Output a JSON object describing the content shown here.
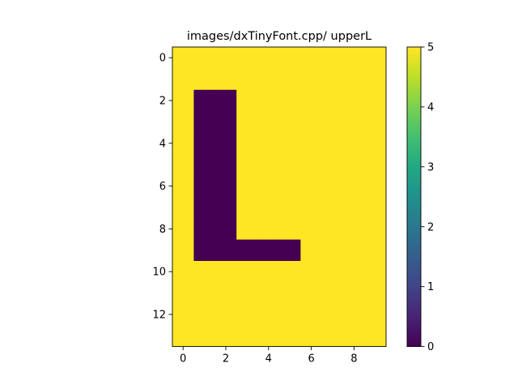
{
  "chart_data": {
    "type": "heatmap",
    "title": "images/dxTinyFont.cpp/ upperL",
    "xlabel": "",
    "ylabel": "",
    "x_ticks": [
      "0",
      "2",
      "4",
      "6",
      "8"
    ],
    "y_ticks": [
      "0",
      "2",
      "4",
      "6",
      "8",
      "10",
      "12"
    ],
    "xlim": [
      -0.5,
      9.5
    ],
    "ylim": [
      13.5,
      -0.5
    ],
    "colormap": "viridis",
    "color_range": [
      0,
      5
    ],
    "colorbar_ticks": [
      "0",
      "1",
      "2",
      "3",
      "4",
      "5"
    ],
    "grid": false,
    "rows": 14,
    "cols": 10,
    "values": [
      [
        5,
        5,
        5,
        5,
        5,
        5,
        5,
        5,
        5,
        5
      ],
      [
        5,
        5,
        5,
        5,
        5,
        5,
        5,
        5,
        5,
        5
      ],
      [
        5,
        0,
        0,
        5,
        5,
        5,
        5,
        5,
        5,
        5
      ],
      [
        5,
        0,
        0,
        5,
        5,
        5,
        5,
        5,
        5,
        5
      ],
      [
        5,
        0,
        0,
        5,
        5,
        5,
        5,
        5,
        5,
        5
      ],
      [
        5,
        0,
        0,
        5,
        5,
        5,
        5,
        5,
        5,
        5
      ],
      [
        5,
        0,
        0,
        5,
        5,
        5,
        5,
        5,
        5,
        5
      ],
      [
        5,
        0,
        0,
        5,
        5,
        5,
        5,
        5,
        5,
        5
      ],
      [
        5,
        0,
        0,
        5,
        5,
        5,
        5,
        5,
        5,
        5
      ],
      [
        5,
        0,
        0,
        0,
        0,
        0,
        5,
        5,
        5,
        5
      ],
      [
        5,
        5,
        5,
        5,
        5,
        5,
        5,
        5,
        5,
        5
      ],
      [
        5,
        5,
        5,
        5,
        5,
        5,
        5,
        5,
        5,
        5
      ],
      [
        5,
        5,
        5,
        5,
        5,
        5,
        5,
        5,
        5,
        5
      ],
      [
        5,
        5,
        5,
        5,
        5,
        5,
        5,
        5,
        5,
        5
      ]
    ]
  }
}
